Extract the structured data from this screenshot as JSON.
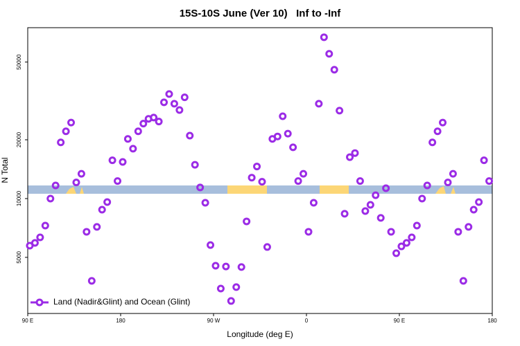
{
  "chart_data": {
    "type": "scatter",
    "title": "15S-10S June (Ver 10)   Inf to -Inf",
    "x_label": "Longitude (deg E)",
    "y_label": "N Total",
    "log_y": true,
    "xlim": [
      90,
      540
    ],
    "ylim": [
      2580,
      75000
    ],
    "xticks": [
      {
        "value": 90,
        "label": "90 E"
      },
      180,
      {
        "value": 270,
        "label": "90 W"
      },
      {
        "value": 360,
        "label": "0"
      },
      {
        "value": 450,
        "label": "90 E"
      },
      {
        "value": 540,
        "label": "180"
      }
    ],
    "yticks": [
      5000,
      10000,
      20000,
      50000
    ],
    "legend_position": "bottom-left",
    "series": [
      {
        "name": "Land (Nadir&Glint) and Ocean (Glint)",
        "color": "#9b2be6",
        "x": [
          92,
          97,
          102,
          107,
          112,
          117,
          122,
          127,
          132,
          137,
          142,
          147,
          152,
          157,
          162,
          167,
          172,
          177,
          182,
          187,
          192,
          197,
          202,
          207,
          212,
          217,
          222,
          227,
          232,
          237,
          242,
          247,
          252,
          257,
          262,
          267,
          272,
          277,
          282,
          287,
          292,
          297,
          302,
          307,
          312,
          317,
          322,
          327,
          332,
          337,
          342,
          347,
          352,
          357,
          362,
          367,
          372,
          377,
          382,
          387,
          392,
          397,
          402,
          407,
          412,
          417,
          422,
          427,
          432,
          437,
          442,
          447,
          452,
          457,
          462,
          467,
          472,
          477,
          482,
          487,
          492,
          497,
          502,
          507,
          512,
          517,
          522,
          527,
          532,
          537
        ],
        "values": [
          5740,
          5930,
          6330,
          7270,
          10000,
          11670,
          19400,
          22100,
          24500,
          12100,
          13400,
          6760,
          3790,
          7160,
          8770,
          9600,
          15700,
          12300,
          15400,
          20200,
          18000,
          22100,
          24200,
          25600,
          26000,
          24800,
          31100,
          34300,
          30600,
          28400,
          33000,
          21000,
          14900,
          11400,
          9520,
          5780,
          4530,
          3460,
          4490,
          2990,
          3520,
          4460,
          7640,
          12800,
          14600,
          12200,
          5650,
          20200,
          20800,
          26400,
          21500,
          18300,
          12300,
          13400,
          6760,
          9520,
          30600,
          67000,
          55100,
          45700,
          28200,
          8360,
          16300,
          17100,
          12300,
          8630,
          9290,
          10400,
          7960,
          11300,
          6760,
          5250,
          5690,
          5930,
          6330,
          7270,
          10000,
          11670,
          19400,
          22100,
          24500,
          12100,
          13400,
          6760,
          3790,
          7160,
          8770,
          9600,
          15700,
          12300
        ]
      }
    ]
  }
}
